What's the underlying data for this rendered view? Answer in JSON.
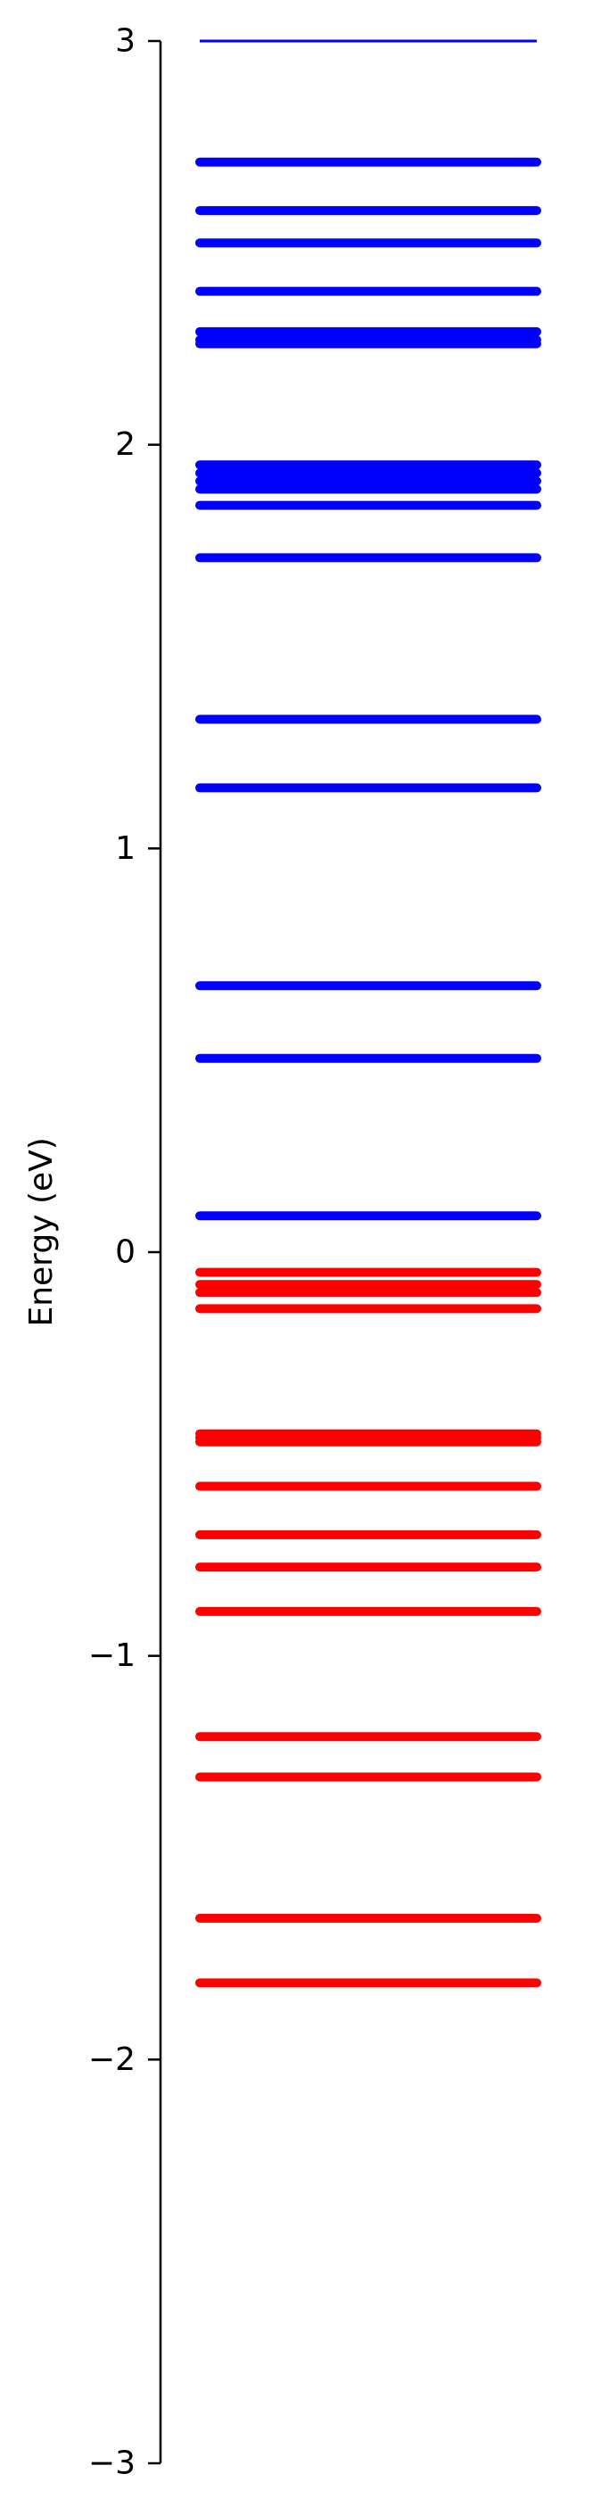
{
  "chart_data": {
    "type": "energy-levels",
    "ylabel": "Energy (eV)",
    "ylim": [
      -3,
      3
    ],
    "yticks": [
      {
        "value": 3,
        "label": "3"
      },
      {
        "value": 2,
        "label": "2"
      },
      {
        "value": 1,
        "label": "1"
      },
      {
        "value": 0,
        "label": "0"
      },
      {
        "value": -1,
        "label": "−1"
      },
      {
        "value": -2,
        "label": "−2"
      },
      {
        "value": -3,
        "label": "−3"
      }
    ],
    "grid": false,
    "series": [
      {
        "color": "#0000ff",
        "values": [
          3.0,
          2.7,
          2.58,
          2.5,
          2.38,
          2.28,
          2.26,
          2.25,
          1.95,
          1.93,
          1.91,
          1.89,
          1.85,
          1.72,
          1.32,
          1.15,
          0.66,
          0.48,
          0.09
        ]
      },
      {
        "color": "#ff0000",
        "values": [
          -0.05,
          -0.08,
          -0.1,
          -0.14,
          -0.45,
          -0.46,
          -0.47,
          -0.58,
          -0.7,
          -0.78,
          -0.89,
          -1.2,
          -1.3,
          -1.65,
          -1.81
        ]
      }
    ]
  }
}
